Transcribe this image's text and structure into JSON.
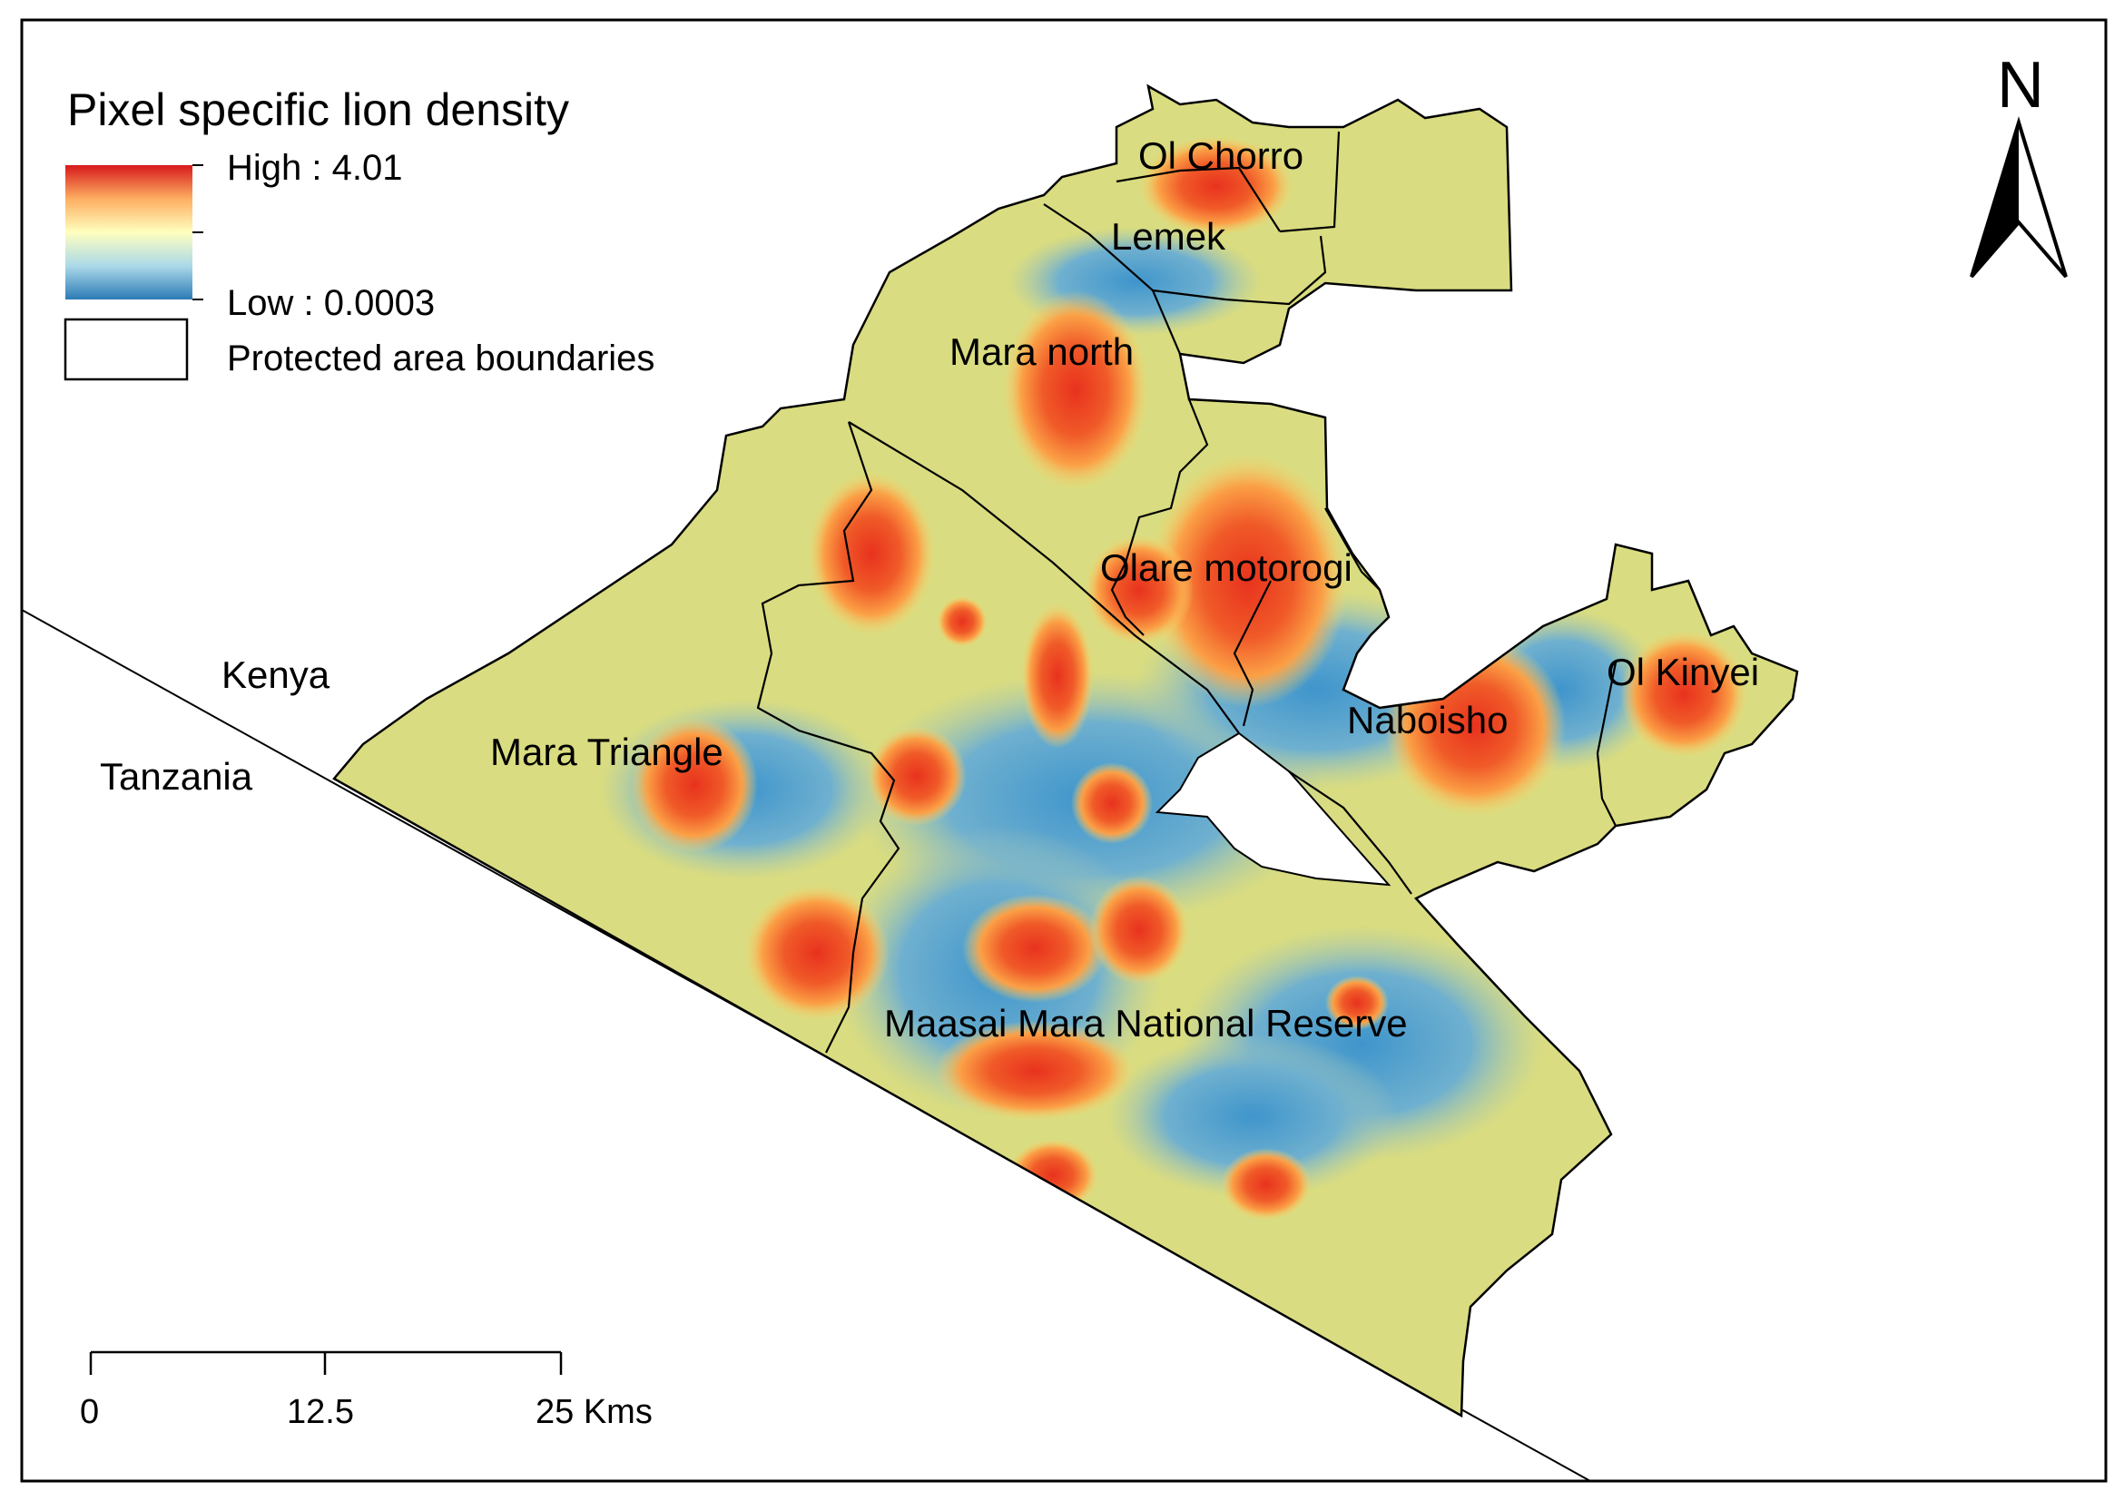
{
  "legend": {
    "title": "Pixel specific lion density",
    "high_label": "High : 4.01",
    "low_label": "Low : 0.0003",
    "boundary_label": "Protected area boundaries",
    "ramp_colors": [
      "#d7191c",
      "#fdae61",
      "#ffffbf",
      "#abd9e9",
      "#2c7bb6"
    ]
  },
  "north_arrow": {
    "label": "N"
  },
  "scale_bar": {
    "ticks": [
      "0",
      "12.5",
      "25 Kms"
    ]
  },
  "country_labels": {
    "north": "Kenya",
    "south": "Tanzania"
  },
  "area_labels": {
    "ol_chorro": "Ol Chorro",
    "lemek": "Lemek",
    "mara_north": "Mara north",
    "olare_motorogi": "Olare motorogi",
    "naboisho": "Naboisho",
    "ol_kinyei": "Ol Kinyei",
    "mara_triangle": "Mara Triangle",
    "maasai_mara": "Maasai Mara National Reserve"
  },
  "hotspots": [
    {
      "area": "Ol Chorro",
      "level": "high"
    },
    {
      "area": "Mara north",
      "level": "high"
    },
    {
      "area": "Olare motorogi",
      "level": "high"
    },
    {
      "area": "Naboisho",
      "level": "high"
    },
    {
      "area": "Ol Kinyei",
      "level": "high"
    },
    {
      "area": "Mara Triangle",
      "level": "high"
    },
    {
      "area": "Maasai Mara National Reserve",
      "level": "high"
    }
  ]
}
